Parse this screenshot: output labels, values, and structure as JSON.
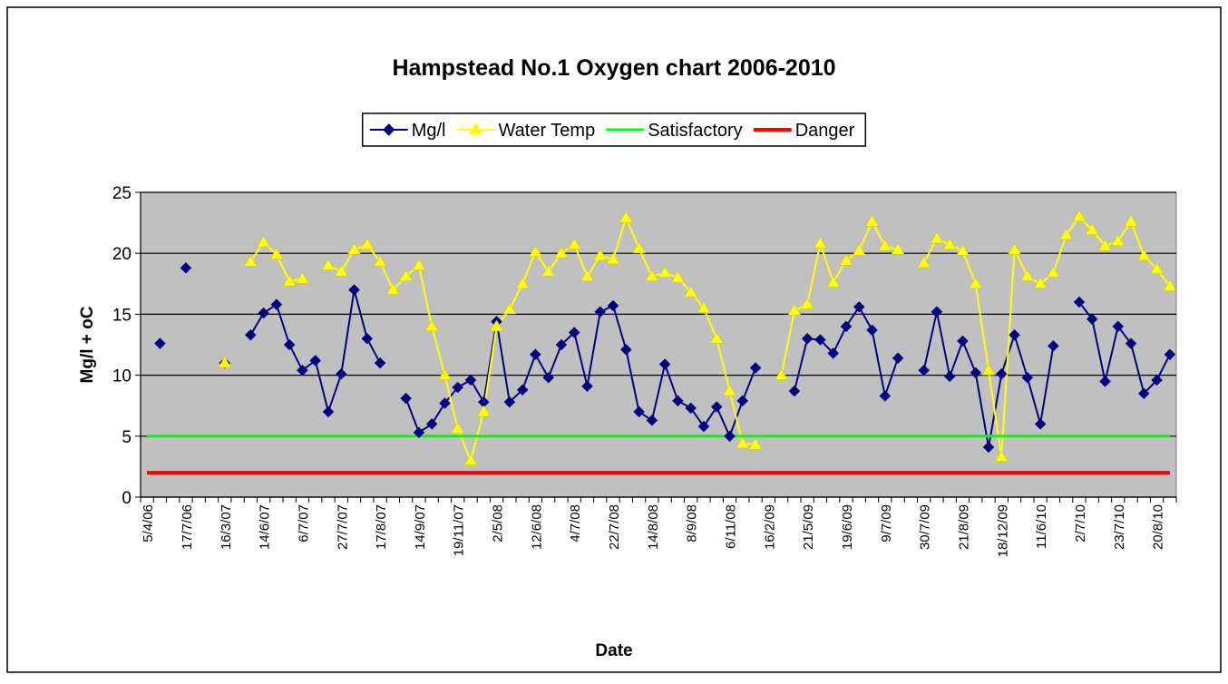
{
  "chart_data": {
    "type": "line",
    "title": "Hampstead No.1 Oxygen chart 2006-2010",
    "xlabel": "Date",
    "ylabel": "Mg/l + oC",
    "categories": [
      "5/4/06",
      null,
      null,
      "17/7/06",
      null,
      null,
      "16/3/07",
      null,
      null,
      "14/6/07",
      null,
      null,
      "6/7/07",
      null,
      null,
      "27/7/07",
      null,
      null,
      "17/8/07",
      null,
      null,
      "14/9/07",
      null,
      null,
      "19/11/07",
      null,
      null,
      "2/5/08",
      null,
      null,
      "12/6/08",
      null,
      null,
      "4/7/08",
      null,
      null,
      "22/7/08",
      null,
      null,
      "14/8/08",
      null,
      null,
      "8/9/08",
      null,
      null,
      "6/11/08",
      null,
      null,
      "16/2/09",
      null,
      null,
      "21/5/09",
      null,
      null,
      "19/6/09",
      null,
      null,
      "9/7/09",
      null,
      null,
      "30/7/09",
      null,
      null,
      "21/8/09",
      null,
      null,
      "18/12/09",
      null,
      null,
      "11/6/10",
      null,
      null,
      "2/7/10",
      null,
      null,
      "23/7/10",
      null,
      null,
      "20/8/10",
      null
    ],
    "series": [
      {
        "name": "Mg/l",
        "color": "#000080",
        "marker": "diamond",
        "values": [
          null,
          12.6,
          null,
          18.8,
          null,
          null,
          11,
          null,
          13.3,
          15.1,
          15.8,
          12.5,
          10.4,
          11.2,
          7,
          10.1,
          17,
          13,
          11,
          null,
          8.1,
          5.3,
          6,
          7.7,
          9,
          9.6,
          7.8,
          14.4,
          7.8,
          8.8,
          11.7,
          9.8,
          12.5,
          13.5,
          9.1,
          15.2,
          15.7,
          12.1,
          7,
          6.3,
          10.9,
          7.9,
          7.3,
          5.8,
          7.4,
          5,
          7.9,
          10.6,
          null,
          null,
          8.7,
          13,
          12.9,
          11.8,
          14,
          15.6,
          13.7,
          8.3,
          11.4,
          null,
          10.4,
          15.2,
          9.9,
          12.8,
          10.2,
          4.1,
          10.1,
          13.3,
          9.8,
          6,
          12.4,
          null,
          16,
          14.6,
          9.5,
          14,
          12.6,
          8.5,
          9.6,
          11.7
        ]
      },
      {
        "name": "Water Temp",
        "color": "#ffff00",
        "marker": "triangle",
        "values": [
          null,
          null,
          null,
          null,
          null,
          null,
          11,
          null,
          19.3,
          20.9,
          19.9,
          17.7,
          17.9,
          null,
          19,
          18.5,
          20.3,
          20.7,
          19.3,
          17,
          18.1,
          19,
          14,
          10,
          5.6,
          3,
          7,
          14,
          15.4,
          17.5,
          20.1,
          18.5,
          20,
          20.7,
          18.1,
          19.8,
          19.5,
          22.9,
          20.4,
          18.1,
          18.4,
          18,
          16.8,
          15.5,
          13,
          8.7,
          4.4,
          4.3,
          null,
          10,
          15.3,
          15.8,
          20.8,
          17.6,
          19.4,
          20.2,
          22.6,
          20.6,
          20.3,
          null,
          19.2,
          21.2,
          20.7,
          20.2,
          17.5,
          10.4,
          3.3,
          20.3,
          18.1,
          17.5,
          18.4,
          21.5,
          23,
          21.9,
          20.6,
          21,
          22.6,
          19.8,
          18.7,
          17.3
        ]
      },
      {
        "name": "Satisfactory",
        "color": "#00ff00",
        "width": 3,
        "values": [
          5,
          5,
          5,
          5,
          5,
          5,
          5,
          5,
          5,
          5,
          5,
          5,
          5,
          5,
          5,
          5,
          5,
          5,
          5,
          5,
          5,
          5,
          5,
          5,
          5,
          5,
          5,
          5,
          5,
          5,
          5,
          5,
          5,
          5,
          5,
          5,
          5,
          5,
          5,
          5,
          5,
          5,
          5,
          5,
          5,
          5,
          5,
          5,
          5,
          5,
          5,
          5,
          5,
          5,
          5,
          5,
          5,
          5,
          5,
          5,
          5,
          5,
          5,
          5,
          5,
          5,
          5,
          5,
          5,
          5,
          5,
          5,
          5,
          5,
          5,
          5,
          5,
          5,
          5,
          5
        ]
      },
      {
        "name": "Danger",
        "color": "#ff0000",
        "width": 4,
        "values": [
          2,
          2,
          2,
          2,
          2,
          2,
          2,
          2,
          2,
          2,
          2,
          2,
          2,
          2,
          2,
          2,
          2,
          2,
          2,
          2,
          2,
          2,
          2,
          2,
          2,
          2,
          2,
          2,
          2,
          2,
          2,
          2,
          2,
          2,
          2,
          2,
          2,
          2,
          2,
          2,
          2,
          2,
          2,
          2,
          2,
          2,
          2,
          2,
          2,
          2,
          2,
          2,
          2,
          2,
          2,
          2,
          2,
          2,
          2,
          2,
          2,
          2,
          2,
          2,
          2,
          2,
          2,
          2,
          2,
          2,
          2,
          2,
          2,
          2,
          2,
          2,
          2,
          2,
          2,
          2
        ]
      }
    ],
    "ylim": [
      0,
      25
    ],
    "yticks": [
      0,
      5,
      10,
      15,
      20,
      25
    ],
    "grid": true,
    "legend": "top"
  }
}
